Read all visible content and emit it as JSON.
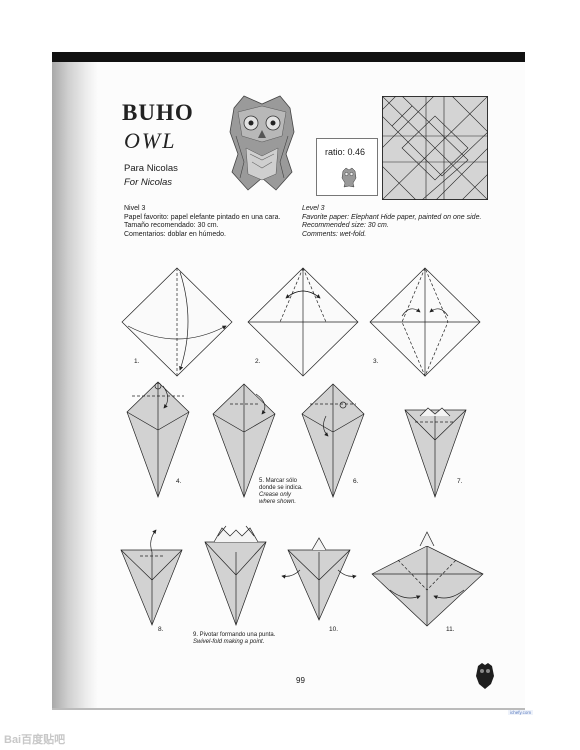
{
  "title": "BUHO",
  "subtitle": "OWL",
  "dedication": {
    "es": "Para Nicolas",
    "en": "For Nicolas"
  },
  "ratio_label": "ratio: 0.46",
  "specs_es": [
    "Nivel 3",
    "Papel favorito: papel elefante pintado en una cara.",
    "Tamaño recomendado: 30 cm.",
    "Comentarios: doblar en húmedo."
  ],
  "specs_en": [
    "Level 3",
    "Favorite paper: Elephant Hide paper, painted on one side.",
    "Recommended size: 30 cm.",
    "Comments: wet-fold."
  ],
  "steps": [
    "1.",
    "2.",
    "3.",
    "4.",
    "",
    "6.",
    "7.",
    "8.",
    "",
    "10.",
    "11."
  ],
  "step5": {
    "num_es": "5. Marcar sólo",
    "es2": "donde se indica.",
    "en1": "Crease only",
    "en2": "where shown."
  },
  "step9": {
    "es": "9. Pivotar formando una punta.",
    "en": "Swivel-fold making a point."
  },
  "page_number": "99",
  "watermark_right": "ichefy.com",
  "watermark_left": "Bai百度贴吧"
}
